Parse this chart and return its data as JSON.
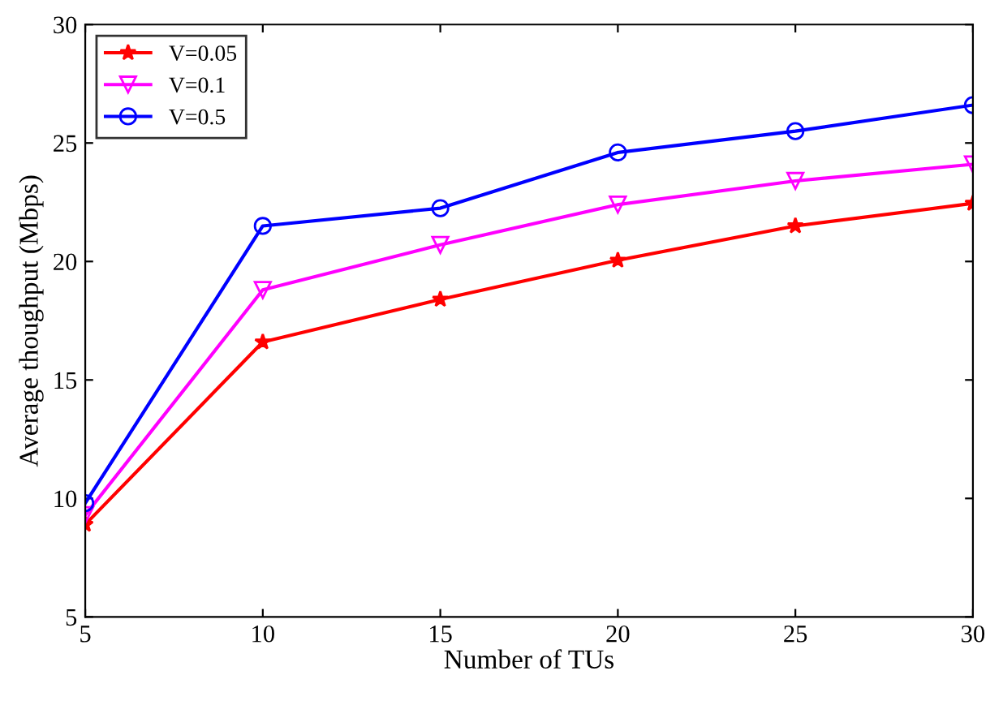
{
  "chart_data": {
    "type": "line",
    "xlabel": "Number of TUs",
    "ylabel": "Average thoughput (Mbps)",
    "x": [
      5,
      10,
      15,
      20,
      25,
      30
    ],
    "series": [
      {
        "name": "V=0.05",
        "color": "#ff0000",
        "marker": "star",
        "values": [
          8.9,
          16.6,
          18.4,
          20.05,
          21.5,
          22.45
        ]
      },
      {
        "name": "V=0.1",
        "color": "#ff00ff",
        "marker": "triangle",
        "values": [
          9.3,
          18.8,
          20.7,
          22.4,
          23.4,
          24.1
        ]
      },
      {
        "name": "V=0.5",
        "color": "#0000ff",
        "marker": "circle",
        "values": [
          9.8,
          21.5,
          22.25,
          24.6,
          25.5,
          26.6
        ]
      }
    ],
    "xlim": [
      5,
      30
    ],
    "xticks": [
      5,
      10,
      15,
      20,
      25,
      30
    ],
    "ylim": [
      5,
      30
    ],
    "yticks": [
      5,
      10,
      15,
      20,
      25,
      30
    ],
    "grid": false,
    "legend": "top left",
    "line_style": "solid"
  }
}
